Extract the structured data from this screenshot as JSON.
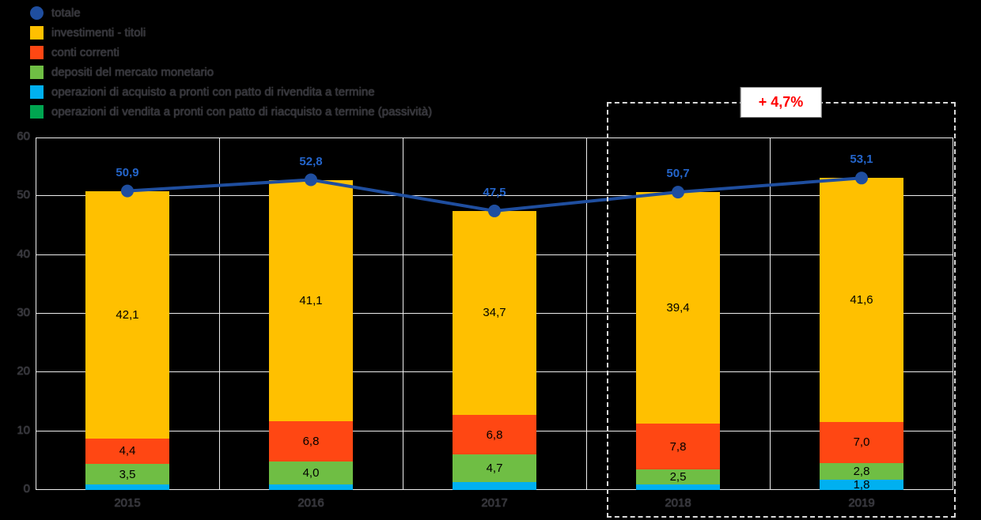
{
  "legend": {
    "items": [
      {
        "label": "totale",
        "color": "#1F4E9F",
        "shape": "circle"
      },
      {
        "label": "investimenti - titoli",
        "color": "#FFC000",
        "shape": "square"
      },
      {
        "label": "conti correnti",
        "color": "#FF4713",
        "shape": "square"
      },
      {
        "label": "depositi del mercato monetario",
        "color": "#6FBE44",
        "shape": "square"
      },
      {
        "label": "operazioni di acquisto a pronti con patto di rivendita a termine",
        "color": "#00B0F0",
        "shape": "square"
      },
      {
        "label": "operazioni di vendita a pronti con patto di riacquisto a termine (passività)",
        "color": "#00A550",
        "shape": "square"
      }
    ]
  },
  "chart_data": {
    "type": "bar",
    "subtype": "stacked-column-with-total-line",
    "categories": [
      "2015",
      "2016",
      "2017",
      "2018",
      "2019"
    ],
    "series": [
      {
        "name": "operazioni di acquisto a pronti con patto di rivendita a termine",
        "color": "#00B0F0",
        "values": [
          0.9,
          0.9,
          1.3,
          1.0,
          1.8
        ],
        "labels": [
          null,
          null,
          null,
          null,
          "1,8"
        ]
      },
      {
        "name": "depositi del mercato monetario",
        "color": "#6FBE44",
        "values": [
          3.5,
          4.0,
          4.7,
          2.5,
          2.8
        ],
        "labels": [
          "3,5",
          "4,0",
          "4,7",
          "2,5",
          "2,8"
        ]
      },
      {
        "name": "conti correnti",
        "color": "#FF4713",
        "values": [
          4.4,
          6.8,
          6.8,
          7.8,
          7.0
        ],
        "labels": [
          "4,4",
          "6,8",
          "6,8",
          "7,8",
          "7,0"
        ]
      },
      {
        "name": "investimenti - titoli",
        "color": "#FFC000",
        "values": [
          42.1,
          41.1,
          34.7,
          39.4,
          41.6
        ],
        "labels": [
          "42,1",
          "41,1",
          "34,7",
          "39,4",
          "41,6"
        ]
      }
    ],
    "line": {
      "name": "totale",
      "color": "#1F4E9F",
      "marker": "circle",
      "values": [
        50.9,
        52.8,
        47.5,
        50.7,
        53.1
      ],
      "labels": [
        "50,9",
        "52,8",
        "47,5",
        "50,7",
        "53,1"
      ],
      "label_color": "#2465CB"
    },
    "ylim": [
      0,
      60
    ],
    "yticks": [
      0,
      10,
      20,
      30,
      40,
      50,
      60
    ],
    "grid": true,
    "legend_position": "top-left",
    "annotation": {
      "text": "+ 4,7%",
      "text_color": "#FF0000",
      "box_background": "#FFFFFF",
      "highlight_categories": [
        "2018",
        "2019"
      ],
      "style": "dashed-rectangle"
    }
  }
}
